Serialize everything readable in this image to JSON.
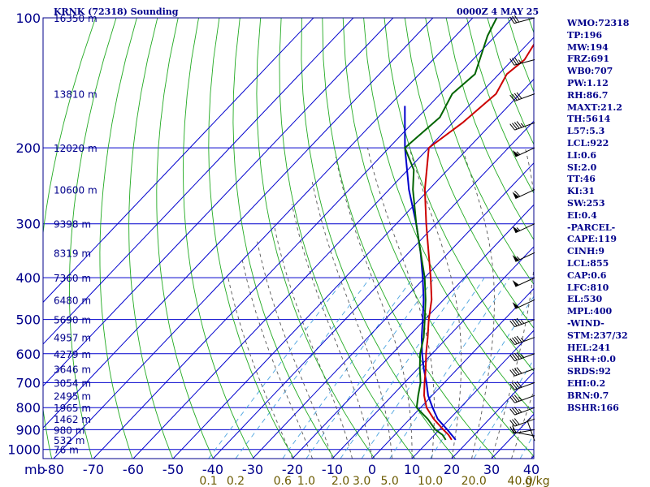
{
  "header": {
    "station": "KRNK (72318) Sounding",
    "time": "0000Z  4 MAY 25"
  },
  "axis_units": {
    "pressure": "mb",
    "mixing_ratio": "g/kg"
  },
  "indices": [
    "WMO:72318",
    "TP:196",
    "MW:194",
    "FRZ:691",
    "WB0:707",
    "PW:1.12",
    "RH:86.7",
    "MAXT:21.2",
    "TH:5614",
    "L57:5.3",
    "LCL:922",
    "LI:0.6",
    "SI:2.0",
    "TT:46",
    "KI:31",
    "SW:253",
    "EI:0.4",
    "-PARCEL-",
    "CAPE:119",
    "CINH:9",
    "LCL:855",
    "CAP:0.6",
    "LFC:810",
    "EL:530",
    "MPL:400",
    "-WIND-",
    "STM:237/32",
    "HEL:241",
    "SHR+:0.0",
    "SRDS:92",
    "EHI:0.2",
    "BRN:0.7",
    "BSHR:166"
  ],
  "colors": {
    "frame": "#00008b",
    "grid": "#0000cd",
    "dry_adiabat": "#22aa22",
    "moist_adiabat": "#555555",
    "mixing_ratio": "#4aa3df",
    "temperature": "#cc0000",
    "dewpoint": "#006400",
    "parcel": "#0000cc",
    "mr_labels": "#6b5a00"
  },
  "chart_data": {
    "type": "skew-t",
    "pressure_ticks": [
      100,
      200,
      300,
      400,
      500,
      600,
      700,
      800,
      900,
      1000
    ],
    "temperature_ticks": [
      -80,
      -70,
      -60,
      -50,
      -40,
      -30,
      -20,
      -10,
      0,
      10,
      20,
      30,
      40
    ],
    "height_labels": [
      {
        "p": 100,
        "label": "16350 m"
      },
      {
        "p": 150,
        "label": "13810 m"
      },
      {
        "p": 200,
        "label": "12020 m"
      },
      {
        "p": 250,
        "label": "10600 m"
      },
      {
        "p": 300,
        "label": "9398 m"
      },
      {
        "p": 350,
        "label": "8319 m"
      },
      {
        "p": 400,
        "label": "7360 m"
      },
      {
        "p": 450,
        "label": "6480 m"
      },
      {
        "p": 500,
        "label": "5690 m"
      },
      {
        "p": 550,
        "label": "4957 m"
      },
      {
        "p": 600,
        "label": "4279 m"
      },
      {
        "p": 650,
        "label": "3646 m"
      },
      {
        "p": 700,
        "label": "3054 m"
      },
      {
        "p": 750,
        "label": "2495 m"
      },
      {
        "p": 800,
        "label": "1965 m"
      },
      {
        "p": 850,
        "label": "1462 m"
      },
      {
        "p": 900,
        "label": "980 m"
      },
      {
        "p": 950,
        "label": "532 m"
      },
      {
        "p": 1000,
        "label": "76 m"
      }
    ],
    "mixing_ratio_labels": [
      "0.1",
      "0.2",
      "0.6",
      "1.0",
      "2.0",
      "3.0",
      "5.0",
      "10.0",
      "20.0",
      "40.0"
    ],
    "mixing_ratio_values": [
      0.1,
      0.2,
      0.6,
      1.0,
      2.0,
      3.0,
      5.0,
      10.0,
      20.0,
      40.0
    ],
    "temperature_profile": [
      [
        950,
        15.5
      ],
      [
        925,
        13.5
      ],
      [
        900,
        11.0
      ],
      [
        850,
        6.0
      ],
      [
        800,
        1.5
      ],
      [
        750,
        -2.0
      ],
      [
        700,
        -5.0
      ],
      [
        650,
        -8.0
      ],
      [
        600,
        -11.5
      ],
      [
        550,
        -15.0
      ],
      [
        500,
        -19.0
      ],
      [
        450,
        -23.0
      ],
      [
        400,
        -28.5
      ],
      [
        350,
        -35.0
      ],
      [
        300,
        -42.5
      ],
      [
        250,
        -51.0
      ],
      [
        200,
        -60.0
      ],
      [
        175,
        -57.5
      ],
      [
        150,
        -56.0
      ],
      [
        135,
        -58.0
      ],
      [
        125,
        -57.0
      ],
      [
        110,
        -59.0
      ],
      [
        100,
        -58.5
      ]
    ],
    "dewpoint_profile": [
      [
        950,
        14.0
      ],
      [
        925,
        12.0
      ],
      [
        900,
        9.0
      ],
      [
        850,
        4.5
      ],
      [
        800,
        -1.0
      ],
      [
        750,
        -3.5
      ],
      [
        700,
        -6.0
      ],
      [
        650,
        -9.5
      ],
      [
        600,
        -13.0
      ],
      [
        550,
        -16.0
      ],
      [
        500,
        -20.0
      ],
      [
        450,
        -24.5
      ],
      [
        400,
        -30.0
      ],
      [
        350,
        -37.0
      ],
      [
        300,
        -45.0
      ],
      [
        250,
        -54.0
      ],
      [
        225,
        -58.5
      ],
      [
        200,
        -66.0
      ],
      [
        170,
        -64.5
      ],
      [
        150,
        -67.0
      ],
      [
        135,
        -66.0
      ],
      [
        110,
        -72.0
      ],
      [
        100,
        -74.0
      ]
    ],
    "parcel_profile": [
      [
        950,
        16.5
      ],
      [
        900,
        12.0
      ],
      [
        850,
        7.0
      ],
      [
        800,
        3.0
      ],
      [
        750,
        -1.0
      ],
      [
        700,
        -4.5
      ],
      [
        650,
        -8.5
      ],
      [
        600,
        -12.5
      ],
      [
        550,
        -16.5
      ],
      [
        500,
        -20.5
      ],
      [
        450,
        -25.0
      ],
      [
        400,
        -30.5
      ],
      [
        350,
        -37.0
      ],
      [
        300,
        -45.0
      ],
      [
        250,
        -55.0
      ],
      [
        200,
        -66.0
      ],
      [
        160,
        -76.0
      ]
    ],
    "wind_barbs": [
      {
        "p": 955,
        "dir": 340,
        "spd": 5
      },
      {
        "p": 930,
        "dir": 280,
        "spd": 10
      },
      {
        "p": 900,
        "dir": 260,
        "spd": 20
      },
      {
        "p": 850,
        "dir": 250,
        "spd": 30
      },
      {
        "p": 800,
        "dir": 250,
        "spd": 35
      },
      {
        "p": 750,
        "dir": 250,
        "spd": 35
      },
      {
        "p": 700,
        "dir": 250,
        "spd": 40
      },
      {
        "p": 650,
        "dir": 250,
        "spd": 40
      },
      {
        "p": 600,
        "dir": 250,
        "spd": 45
      },
      {
        "p": 550,
        "dir": 250,
        "spd": 45
      },
      {
        "p": 500,
        "dir": 250,
        "spd": 45
      },
      {
        "p": 450,
        "dir": 245,
        "spd": 50
      },
      {
        "p": 400,
        "dir": 245,
        "spd": 50
      },
      {
        "p": 350,
        "dir": 245,
        "spd": 55
      },
      {
        "p": 300,
        "dir": 245,
        "spd": 55
      },
      {
        "p": 250,
        "dir": 245,
        "spd": 60
      },
      {
        "p": 200,
        "dir": 245,
        "spd": 55
      },
      {
        "p": 175,
        "dir": 250,
        "spd": 45
      },
      {
        "p": 150,
        "dir": 250,
        "spd": 40
      },
      {
        "p": 125,
        "dir": 255,
        "spd": 35
      },
      {
        "p": 100,
        "dir": 255,
        "spd": 30
      }
    ]
  }
}
